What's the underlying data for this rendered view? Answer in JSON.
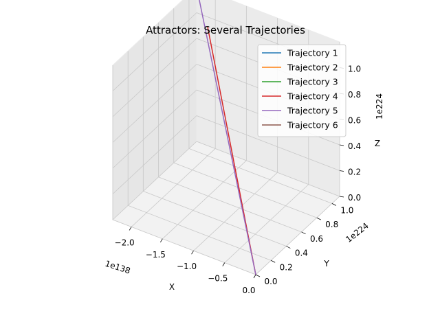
{
  "chart_data": {
    "type": "line3d",
    "title": "Attractors: Several Trajectories",
    "xlabel": "X",
    "ylabel": "Y",
    "zlabel": "Z",
    "x_offset": "1e138",
    "y_offset": "1e224",
    "z_offset": "1e224",
    "x_ticks": [
      "−2.0",
      "−1.5",
      "−1.0",
      "−0.5",
      "0.0"
    ],
    "y_ticks": [
      "0.0",
      "0.2",
      "0.4",
      "0.6",
      "0.8",
      "1.0"
    ],
    "z_ticks": [
      "0.0",
      "0.2",
      "0.4",
      "0.6",
      "0.8",
      "1.0"
    ],
    "x_range": [
      -2.3,
      0.0
    ],
    "y_range": [
      0.0,
      1.1
    ],
    "z_range": [
      0.0,
      1.2
    ],
    "grid": true,
    "legend_position": "top-right",
    "series": [
      {
        "name": "Trajectory 1",
        "color": "#1f77b4",
        "x": [
          0.0
        ],
        "y": [
          0.0
        ],
        "z": [
          0.0
        ]
      },
      {
        "name": "Trajectory 2",
        "color": "#ff7f0e",
        "x": [
          0.0
        ],
        "y": [
          0.0
        ],
        "z": [
          0.0
        ]
      },
      {
        "name": "Trajectory 3",
        "color": "#2ca02c",
        "x": [
          0.0
        ],
        "y": [
          0.0
        ],
        "z": [
          0.0
        ]
      },
      {
        "name": "Trajectory 4",
        "color": "#d62728",
        "x": [
          0.0,
          -2.0
        ],
        "y": [
          0.0,
          1.0
        ],
        "z": [
          0.0,
          1.0
        ]
      },
      {
        "name": "Trajectory 5",
        "color": "#9467bd",
        "x": [
          0.0,
          -2.3
        ],
        "y": [
          0.0,
          1.1
        ],
        "z": [
          0.0,
          1.2
        ]
      },
      {
        "name": "Trajectory 6",
        "color": "#8c564b",
        "x": [
          0.0
        ],
        "y": [
          0.0
        ],
        "z": [
          0.0
        ]
      }
    ]
  }
}
